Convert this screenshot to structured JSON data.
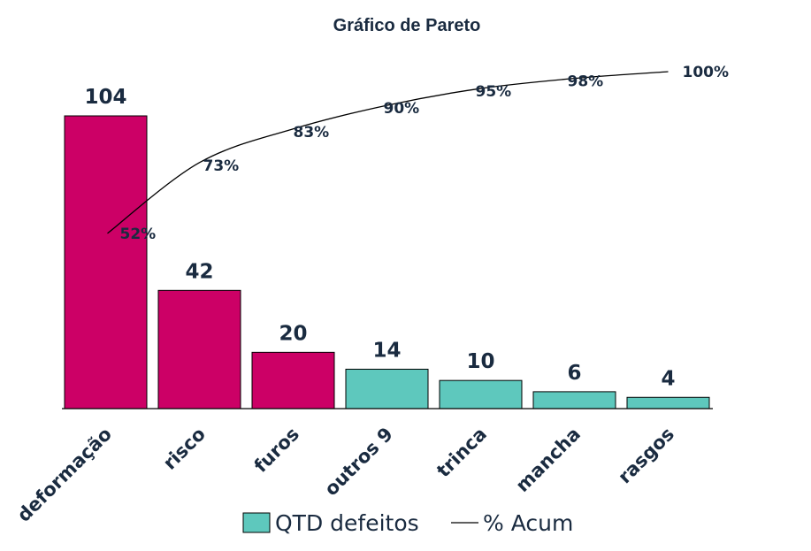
{
  "chart_data": {
    "type": "bar",
    "title": "Gráfico de Pareto",
    "categories": [
      "deformação",
      "risco",
      "furos",
      "outros 9",
      "trinca",
      "mancha",
      "rasgos"
    ],
    "series": [
      {
        "name": "QTD defeitos",
        "type": "bar",
        "values": [
          104,
          42,
          20,
          14,
          10,
          6,
          4
        ],
        "colors": [
          "#cc0066",
          "#cc0066",
          "#cc0066",
          "#5ec8bd",
          "#5ec8bd",
          "#5ec8bd",
          "#5ec8bd"
        ]
      },
      {
        "name": "% Acum",
        "type": "line",
        "values": [
          52,
          73,
          83,
          90,
          95,
          98,
          100
        ],
        "labels": [
          "52%",
          "73%",
          "83%",
          "90%",
          "95%",
          "98%",
          "100%"
        ],
        "color": "#000000"
      }
    ],
    "grid": false,
    "legend": "bottom"
  }
}
